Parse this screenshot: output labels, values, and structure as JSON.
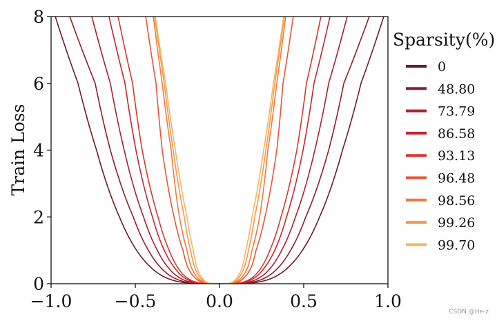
{
  "chart_data": {
    "type": "line",
    "title": "",
    "xlabel": "",
    "ylabel": "Train Loss",
    "xlim": [
      -1.0,
      1.0
    ],
    "ylim": [
      0,
      8
    ],
    "xticks": [
      "−1.0",
      "−0.5",
      "0.0",
      "0.5",
      "1.0"
    ],
    "xtick_values": [
      -1.0,
      -0.5,
      0.0,
      0.5,
      1.0
    ],
    "yticks": [
      "0",
      "2",
      "4",
      "6",
      "8"
    ],
    "ytick_values": [
      0,
      2,
      4,
      6,
      8
    ],
    "grid": false,
    "legend_title": "Sparsity(%)",
    "legend_position": "outside right",
    "loss_levels": [
      0,
      0.5,
      1,
      2,
      4,
      6,
      8
    ],
    "series": [
      {
        "name": "0",
        "color": "#6b1a2a",
        "abs_x_at_loss": [
          0,
          0.41,
          0.492,
          0.594,
          0.73,
          0.84,
          0.975
        ]
      },
      {
        "name": "48.80",
        "color": "#8c1d2f",
        "abs_x_at_loss": [
          0,
          0.352,
          0.422,
          0.512,
          0.648,
          0.738,
          0.889
        ]
      },
      {
        "name": "73.79",
        "color": "#a8202f",
        "abs_x_at_loss": [
          0,
          0.307,
          0.369,
          0.451,
          0.566,
          0.648,
          0.758
        ]
      },
      {
        "name": "86.58",
        "color": "#c0262f",
        "abs_x_at_loss": [
          0,
          0.27,
          0.328,
          0.398,
          0.496,
          0.561,
          0.656
        ]
      },
      {
        "name": "93.13",
        "color": "#d6362d",
        "abs_x_at_loss": [
          0,
          0.25,
          0.299,
          0.365,
          0.459,
          0.516,
          0.602
        ]
      },
      {
        "name": "96.48",
        "color": "#e4553a",
        "abs_x_at_loss": [
          0,
          0.189,
          0.217,
          0.27,
          0.34,
          0.377,
          0.438
        ]
      },
      {
        "name": "98.56",
        "color": "#ee7a3e",
        "abs_x_at_loss": [
          0,
          0.168,
          0.193,
          0.238,
          0.287,
          0.34,
          0.393
        ]
      },
      {
        "name": "99.26",
        "color": "#f3984c",
        "abs_x_at_loss": [
          0,
          0.148,
          0.172,
          0.209,
          0.275,
          0.328,
          0.385
        ]
      },
      {
        "name": "99.70",
        "color": "#f7b55e",
        "abs_x_at_loss": [
          0,
          0.135,
          0.156,
          0.193,
          0.262,
          0.32,
          0.381
        ]
      }
    ]
  },
  "watermark": "CSDN @He-z"
}
